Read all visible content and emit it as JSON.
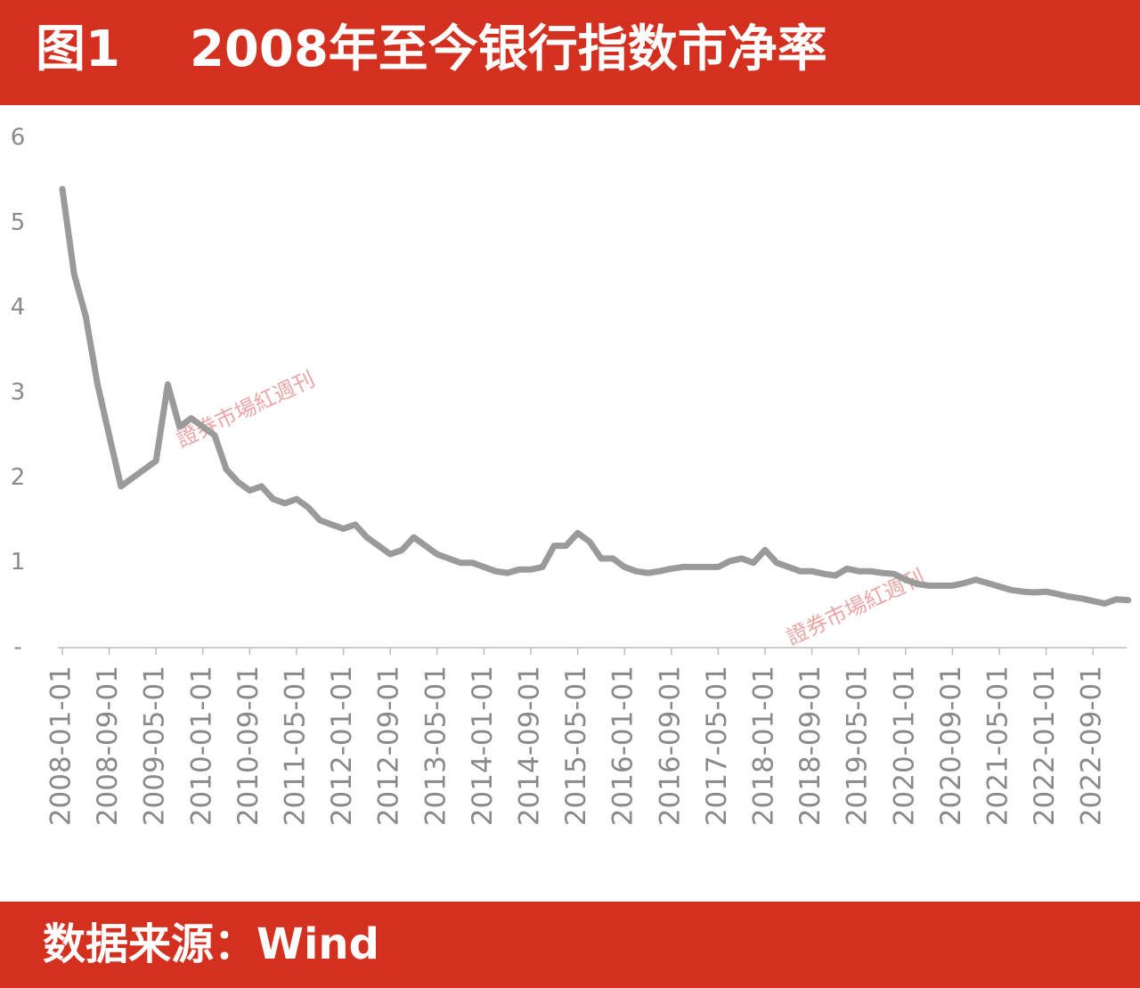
{
  "chart_data": {
    "type": "line",
    "title": "图1    2008年至今银行指数市净率",
    "source": "数据来源：Wind",
    "watermark": "證券市場紅週刊",
    "categories": [
      "2008-01-01",
      null,
      null,
      null,
      "2008-09-01",
      null,
      null,
      null,
      "2009-05-01",
      null,
      null,
      null,
      "2010-01-01",
      null,
      null,
      null,
      "2010-09-01",
      null,
      null,
      null,
      "2011-05-01",
      null,
      null,
      null,
      "2012-01-01",
      null,
      null,
      null,
      "2012-09-01",
      null,
      null,
      null,
      "2013-05-01",
      null,
      null,
      null,
      "2014-01-01",
      null,
      null,
      null,
      "2014-09-01",
      null,
      null,
      null,
      "2015-05-01",
      null,
      null,
      null,
      "2016-01-01",
      null,
      null,
      null,
      "2016-09-01",
      null,
      null,
      null,
      "2017-05-01",
      null,
      null,
      null,
      "2018-01-01",
      null,
      null,
      null,
      "2018-09-01",
      null,
      null,
      null,
      "2019-05-01",
      null,
      null,
      null,
      "2020-01-01",
      null,
      null,
      null,
      "2020-09-01",
      null,
      null,
      null,
      "2021-05-01",
      null,
      null,
      null,
      "2022-01-01",
      null,
      null,
      null,
      "2022-09-01",
      null,
      null,
      null
    ],
    "values": [
      5.4,
      4.4,
      3.9,
      3.1,
      2.5,
      1.9,
      2.0,
      2.1,
      2.2,
      3.1,
      2.6,
      2.7,
      2.6,
      2.5,
      2.1,
      1.95,
      1.85,
      1.9,
      1.75,
      1.7,
      1.75,
      1.65,
      1.5,
      1.45,
      1.4,
      1.45,
      1.3,
      1.2,
      1.1,
      1.15,
      1.3,
      1.2,
      1.1,
      1.05,
      1.0,
      1.0,
      0.95,
      0.9,
      0.88,
      0.92,
      0.92,
      0.95,
      1.2,
      1.2,
      1.35,
      1.25,
      1.05,
      1.05,
      0.95,
      0.9,
      0.88,
      0.9,
      0.93,
      0.95,
      0.95,
      0.95,
      0.95,
      1.02,
      1.05,
      1.0,
      1.15,
      1.0,
      0.95,
      0.9,
      0.9,
      0.87,
      0.85,
      0.93,
      0.9,
      0.9,
      0.88,
      0.87,
      0.8,
      0.75,
      0.73,
      0.73,
      0.73,
      0.76,
      0.8,
      0.76,
      0.72,
      0.68,
      0.66,
      0.65,
      0.66,
      0.63,
      0.6,
      0.58,
      0.55,
      0.52,
      0.57,
      0.56
    ],
    "color": "#9a9a9a",
    "ylim": [
      0,
      6
    ],
    "yticks": [
      {
        "value": 0,
        "label": "-"
      },
      1,
      2,
      3,
      4,
      5,
      6
    ],
    "grid": false
  }
}
